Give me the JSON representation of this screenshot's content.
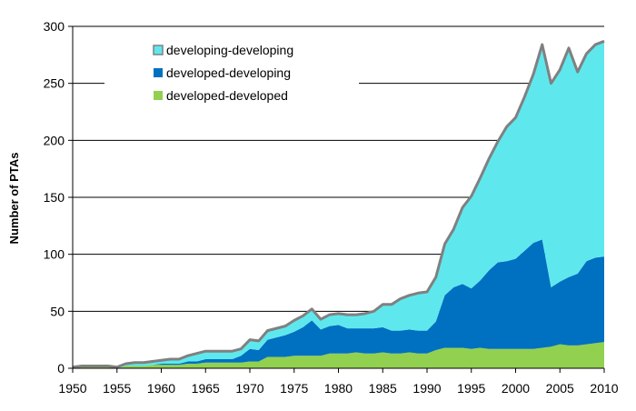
{
  "chart_data": {
    "type": "area",
    "stacked": true,
    "title": "",
    "xlabel": "",
    "ylabel": "Number of PTAs",
    "xlim": [
      1950,
      2010
    ],
    "ylim": [
      0,
      300
    ],
    "x_ticks": [
      1950,
      1955,
      1960,
      1965,
      1970,
      1975,
      1980,
      1985,
      1990,
      1995,
      2000,
      2005,
      2010
    ],
    "y_ticks": [
      0,
      50,
      100,
      150,
      200,
      250,
      300
    ],
    "gridlines": "horizontal",
    "legend_position": "top-left",
    "x": [
      1950,
      1951,
      1952,
      1953,
      1954,
      1955,
      1956,
      1957,
      1958,
      1959,
      1960,
      1961,
      1962,
      1963,
      1964,
      1965,
      1966,
      1967,
      1968,
      1969,
      1970,
      1971,
      1972,
      1973,
      1974,
      1975,
      1976,
      1977,
      1978,
      1979,
      1980,
      1981,
      1982,
      1983,
      1984,
      1985,
      1986,
      1987,
      1988,
      1989,
      1990,
      1991,
      1992,
      1993,
      1994,
      1995,
      1996,
      1997,
      1998,
      1999,
      2000,
      2001,
      2002,
      2003,
      2004,
      2005,
      2006,
      2007,
      2008,
      2009,
      2010
    ],
    "series": [
      {
        "name": "developed-developed",
        "color": "#92d050",
        "values": [
          1,
          1,
          1,
          1,
          1,
          0,
          2,
          2,
          2,
          3,
          3,
          3,
          3,
          4,
          4,
          5,
          5,
          5,
          5,
          5,
          6,
          6,
          10,
          10,
          10,
          11,
          11,
          11,
          11,
          13,
          13,
          13,
          14,
          13,
          13,
          14,
          13,
          13,
          14,
          13,
          13,
          16,
          18,
          18,
          18,
          17,
          18,
          17,
          17,
          17,
          17,
          17,
          17,
          18,
          19,
          21,
          20,
          20,
          21,
          22,
          23
        ]
      },
      {
        "name": "developed-developing",
        "color": "#0070c0",
        "values": [
          0,
          0,
          0,
          0,
          0,
          0,
          0,
          0,
          0,
          0,
          1,
          1,
          1,
          2,
          2,
          3,
          3,
          3,
          3,
          6,
          11,
          10,
          15,
          17,
          19,
          21,
          25,
          31,
          23,
          24,
          25,
          22,
          21,
          22,
          22,
          22,
          20,
          20,
          20,
          20,
          20,
          25,
          46,
          53,
          56,
          53,
          59,
          69,
          76,
          77,
          79,
          86,
          93,
          95,
          52,
          55,
          60,
          63,
          73,
          75,
          75
        ]
      },
      {
        "name": "developing-developing",
        "color": "#5ee8ee",
        "values": [
          0,
          1,
          1,
          1,
          1,
          1,
          2,
          3,
          3,
          3,
          3,
          4,
          4,
          5,
          7,
          7,
          7,
          7,
          7,
          6,
          8,
          8,
          8,
          8,
          8,
          10,
          10,
          10,
          9,
          10,
          10,
          12,
          12,
          13,
          15,
          20,
          23,
          28,
          30,
          33,
          34,
          39,
          45,
          51,
          67,
          81,
          90,
          98,
          106,
          118,
          124,
          135,
          148,
          171,
          179,
          186,
          201,
          177,
          182,
          187,
          189
        ]
      }
    ],
    "legend_order": [
      "developing-developing",
      "developed-developing",
      "developed-developed"
    ],
    "outline_color": "#808080"
  }
}
